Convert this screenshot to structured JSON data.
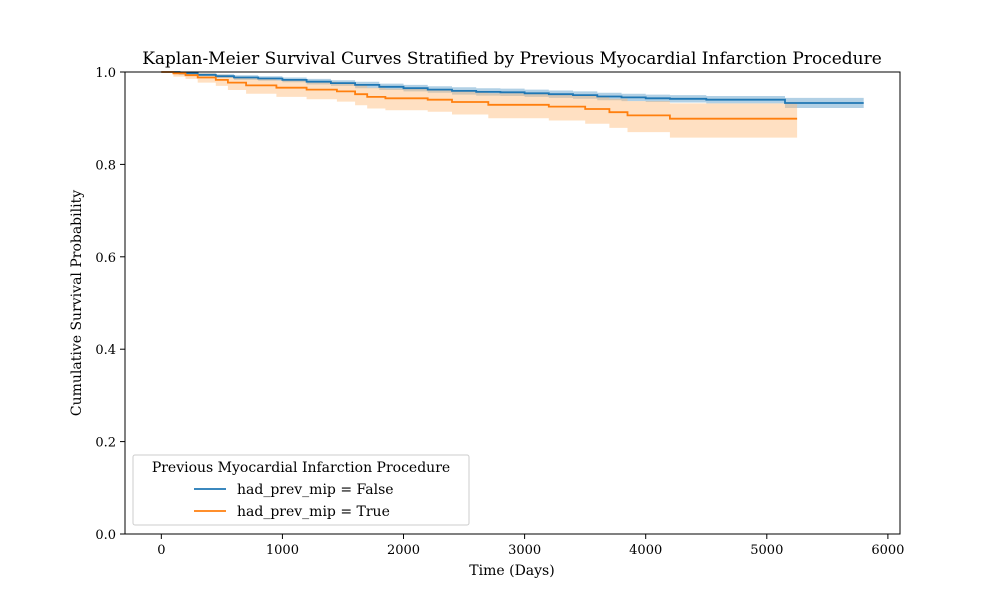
{
  "chart_data": {
    "type": "line",
    "title": "Kaplan-Meier Survival Curves Stratified by Previous Myocardial Infarction Procedure",
    "xlabel": "Time (Days)",
    "ylabel": "Cumulative Survival Probability",
    "xlim": [
      -300,
      6100
    ],
    "ylim": [
      0.0,
      1.0
    ],
    "xticks": [
      0,
      1000,
      2000,
      3000,
      4000,
      5000,
      6000
    ],
    "xtick_labels": [
      "0",
      "1000",
      "2000",
      "3000",
      "4000",
      "5000",
      "6000"
    ],
    "yticks": [
      0.0,
      0.2,
      0.4,
      0.6,
      0.8,
      1.0
    ],
    "ytick_labels": [
      "0.0",
      "0.2",
      "0.4",
      "0.6",
      "0.8",
      "1.0"
    ],
    "grid": false,
    "legend": {
      "title": "Previous Myocardial Infarction Procedure",
      "position": "lower-left"
    },
    "series": [
      {
        "name": "had_prev_mip = False",
        "color": "#1f77b4",
        "band_color": "#1f77b4",
        "steps": [
          [
            0,
            1.0
          ],
          [
            150,
            0.997
          ],
          [
            300,
            0.994
          ],
          [
            450,
            0.991
          ],
          [
            600,
            0.988
          ],
          [
            800,
            0.986
          ],
          [
            1000,
            0.983
          ],
          [
            1200,
            0.979
          ],
          [
            1400,
            0.976
          ],
          [
            1600,
            0.972
          ],
          [
            1800,
            0.968
          ],
          [
            2000,
            0.965
          ],
          [
            2200,
            0.962
          ],
          [
            2400,
            0.959
          ],
          [
            2600,
            0.957
          ],
          [
            2800,
            0.956
          ],
          [
            3000,
            0.954
          ],
          [
            3200,
            0.952
          ],
          [
            3400,
            0.95
          ],
          [
            3600,
            0.947
          ],
          [
            3800,
            0.945
          ],
          [
            4000,
            0.943
          ],
          [
            4200,
            0.942
          ],
          [
            4500,
            0.94
          ],
          [
            5150,
            0.933
          ],
          [
            5800,
            0.933
          ]
        ],
        "upper": [
          [
            0,
            1.0
          ],
          [
            150,
            0.999
          ],
          [
            300,
            0.997
          ],
          [
            450,
            0.995
          ],
          [
            600,
            0.993
          ],
          [
            800,
            0.991
          ],
          [
            1000,
            0.988
          ],
          [
            1200,
            0.985
          ],
          [
            1400,
            0.982
          ],
          [
            1600,
            0.979
          ],
          [
            1800,
            0.975
          ],
          [
            2000,
            0.972
          ],
          [
            2200,
            0.969
          ],
          [
            2400,
            0.967
          ],
          [
            2600,
            0.965
          ],
          [
            2800,
            0.964
          ],
          [
            3000,
            0.962
          ],
          [
            3200,
            0.96
          ],
          [
            3400,
            0.958
          ],
          [
            3600,
            0.955
          ],
          [
            3800,
            0.953
          ],
          [
            4000,
            0.951
          ],
          [
            4200,
            0.95
          ],
          [
            4500,
            0.948
          ],
          [
            5150,
            0.944
          ],
          [
            5800,
            0.944
          ]
        ],
        "lower": [
          [
            0,
            1.0
          ],
          [
            150,
            0.995
          ],
          [
            300,
            0.991
          ],
          [
            450,
            0.987
          ],
          [
            600,
            0.983
          ],
          [
            800,
            0.981
          ],
          [
            1000,
            0.978
          ],
          [
            1200,
            0.973
          ],
          [
            1400,
            0.97
          ],
          [
            1600,
            0.965
          ],
          [
            1800,
            0.961
          ],
          [
            2000,
            0.958
          ],
          [
            2200,
            0.955
          ],
          [
            2400,
            0.951
          ],
          [
            2600,
            0.949
          ],
          [
            2800,
            0.948
          ],
          [
            3000,
            0.946
          ],
          [
            3200,
            0.944
          ],
          [
            3400,
            0.942
          ],
          [
            3600,
            0.939
          ],
          [
            3800,
            0.937
          ],
          [
            4000,
            0.935
          ],
          [
            4200,
            0.934
          ],
          [
            4500,
            0.932
          ],
          [
            5150,
            0.922
          ],
          [
            5800,
            0.922
          ]
        ]
      },
      {
        "name": "had_prev_mip = True",
        "color": "#ff7f0e",
        "band_color": "#ffbb78",
        "steps": [
          [
            0,
            1.0
          ],
          [
            100,
            0.997
          ],
          [
            200,
            0.993
          ],
          [
            300,
            0.988
          ],
          [
            450,
            0.983
          ],
          [
            550,
            0.977
          ],
          [
            700,
            0.971
          ],
          [
            950,
            0.966
          ],
          [
            1200,
            0.962
          ],
          [
            1450,
            0.958
          ],
          [
            1600,
            0.952
          ],
          [
            1700,
            0.946
          ],
          [
            1850,
            0.943
          ],
          [
            2200,
            0.94
          ],
          [
            2400,
            0.935
          ],
          [
            2700,
            0.929
          ],
          [
            3200,
            0.925
          ],
          [
            3500,
            0.92
          ],
          [
            3700,
            0.913
          ],
          [
            3850,
            0.906
          ],
          [
            4200,
            0.899
          ],
          [
            5250,
            0.899
          ]
        ],
        "upper": [
          [
            0,
            1.0
          ],
          [
            100,
            1.0
          ],
          [
            200,
            0.999
          ],
          [
            300,
            0.997
          ],
          [
            450,
            0.994
          ],
          [
            550,
            0.99
          ],
          [
            700,
            0.986
          ],
          [
            950,
            0.982
          ],
          [
            1200,
            0.979
          ],
          [
            1450,
            0.976
          ],
          [
            1600,
            0.971
          ],
          [
            1700,
            0.966
          ],
          [
            1850,
            0.964
          ],
          [
            2200,
            0.962
          ],
          [
            2400,
            0.958
          ],
          [
            2700,
            0.954
          ],
          [
            3200,
            0.951
          ],
          [
            3500,
            0.948
          ],
          [
            3700,
            0.942
          ],
          [
            3850,
            0.937
          ],
          [
            4200,
            0.932
          ],
          [
            5250,
            0.932
          ]
        ],
        "lower": [
          [
            0,
            1.0
          ],
          [
            100,
            0.99
          ],
          [
            200,
            0.985
          ],
          [
            300,
            0.977
          ],
          [
            450,
            0.97
          ],
          [
            550,
            0.961
          ],
          [
            700,
            0.953
          ],
          [
            950,
            0.946
          ],
          [
            1200,
            0.941
          ],
          [
            1450,
            0.936
          ],
          [
            1600,
            0.928
          ],
          [
            1700,
            0.921
          ],
          [
            1850,
            0.917
          ],
          [
            2200,
            0.914
          ],
          [
            2400,
            0.908
          ],
          [
            2700,
            0.9
          ],
          [
            3200,
            0.895
          ],
          [
            3500,
            0.888
          ],
          [
            3700,
            0.879
          ],
          [
            3850,
            0.87
          ],
          [
            4200,
            0.858
          ],
          [
            5250,
            0.858
          ]
        ]
      }
    ]
  }
}
